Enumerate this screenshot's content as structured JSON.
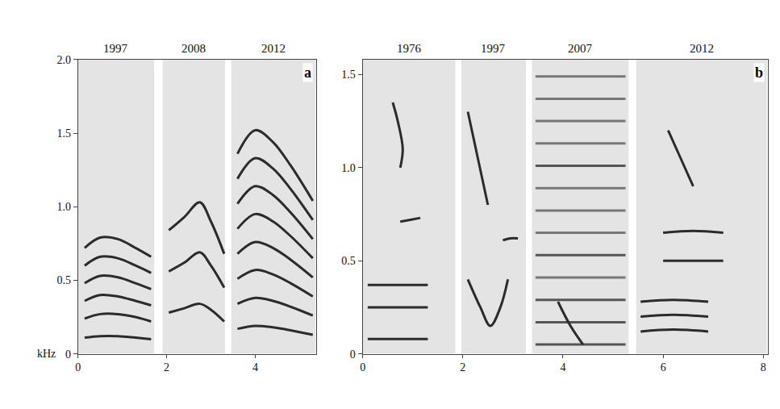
{
  "chart_data": [
    {
      "type": "line",
      "title": "a",
      "ylabel": "kHz",
      "color": "#2b2b2b",
      "xlim": [
        0,
        5.37
      ],
      "xticks": [
        0,
        2,
        4
      ],
      "ylim": [
        0,
        2.0
      ],
      "yticks": [
        0,
        0.5,
        {
          "value": 1,
          "label": "1.0"
        },
        1.5,
        {
          "value": 2,
          "label": "2.0"
        }
      ],
      "segments": [
        {
          "label": "1997",
          "xlim": [
            0,
            1.72
          ]
        },
        {
          "label": "2008",
          "xlim": [
            1.91,
            3.32
          ]
        },
        {
          "label": "2012",
          "xlim": [
            3.46,
            5.37
          ]
        }
      ],
      "series": [
        {
          "x": [
            0.15,
            0.5,
            0.9,
            1.3,
            1.65
          ],
          "values": [
            0.11,
            0.12,
            0.12,
            0.11,
            0.1
          ]
        },
        {
          "x": [
            0.15,
            0.5,
            0.9,
            1.3,
            1.65
          ],
          "values": [
            0.24,
            0.27,
            0.27,
            0.25,
            0.22
          ]
        },
        {
          "x": [
            0.15,
            0.5,
            0.9,
            1.3,
            1.65
          ],
          "values": [
            0.36,
            0.4,
            0.39,
            0.36,
            0.33
          ]
        },
        {
          "x": [
            0.15,
            0.5,
            0.9,
            1.3,
            1.65
          ],
          "values": [
            0.48,
            0.53,
            0.52,
            0.48,
            0.44
          ]
        },
        {
          "x": [
            0.15,
            0.5,
            0.9,
            1.3,
            1.65
          ],
          "values": [
            0.6,
            0.66,
            0.65,
            0.6,
            0.55
          ]
        },
        {
          "x": [
            0.15,
            0.5,
            0.9,
            1.3,
            1.65
          ],
          "values": [
            0.72,
            0.79,
            0.78,
            0.72,
            0.66
          ]
        },
        {
          "x": [
            2.05,
            2.4,
            2.75,
            3.0,
            3.3
          ],
          "values": [
            0.28,
            0.31,
            0.34,
            0.3,
            0.22
          ]
        },
        {
          "x": [
            2.05,
            2.4,
            2.75,
            3.0,
            3.3
          ],
          "values": [
            0.56,
            0.62,
            0.69,
            0.6,
            0.45
          ]
        },
        {
          "x": [
            2.05,
            2.4,
            2.75,
            3.0,
            3.3
          ],
          "values": [
            0.84,
            0.93,
            1.03,
            0.9,
            0.68
          ]
        },
        {
          "x": [
            3.6,
            4.0,
            4.4,
            4.8,
            5.3
          ],
          "values": [
            0.17,
            0.19,
            0.18,
            0.16,
            0.13
          ]
        },
        {
          "x": [
            3.6,
            4.0,
            4.4,
            4.8,
            5.3
          ],
          "values": [
            0.34,
            0.38,
            0.36,
            0.32,
            0.26
          ]
        },
        {
          "x": [
            3.6,
            4.0,
            4.4,
            4.8,
            5.3
          ],
          "values": [
            0.51,
            0.57,
            0.54,
            0.48,
            0.39
          ]
        },
        {
          "x": [
            3.6,
            4.0,
            4.4,
            4.8,
            5.3
          ],
          "values": [
            0.68,
            0.76,
            0.72,
            0.64,
            0.52
          ]
        },
        {
          "x": [
            3.6,
            4.0,
            4.4,
            4.8,
            5.3
          ],
          "values": [
            0.85,
            0.95,
            0.9,
            0.8,
            0.65
          ]
        },
        {
          "x": [
            3.6,
            4.0,
            4.4,
            4.8,
            5.3
          ],
          "values": [
            1.02,
            1.14,
            1.08,
            0.96,
            0.78
          ]
        },
        {
          "x": [
            3.6,
            4.0,
            4.4,
            4.8,
            5.3
          ],
          "values": [
            1.19,
            1.33,
            1.26,
            1.12,
            0.91
          ]
        },
        {
          "x": [
            3.6,
            4.0,
            4.4,
            4.8,
            5.3
          ],
          "values": [
            1.36,
            1.52,
            1.44,
            1.28,
            1.04
          ]
        }
      ]
    },
    {
      "type": "line",
      "title": "b",
      "color": "#2b2b2b",
      "xlim": [
        0,
        8.1
      ],
      "xticks": [
        0,
        2,
        4,
        6,
        8
      ],
      "ylim": [
        0,
        1.58
      ],
      "yticks": [
        0,
        0.5,
        {
          "value": 1,
          "label": "1.0"
        },
        1.5
      ],
      "segments": [
        {
          "label": "1976",
          "xlim": [
            0,
            1.85
          ]
        },
        {
          "label": "1997",
          "xlim": [
            1.97,
            3.26
          ]
        },
        {
          "label": "2007",
          "xlim": [
            3.38,
            5.31
          ]
        },
        {
          "label": "2012",
          "xlim": [
            5.46,
            8.07
          ]
        }
      ],
      "series": [
        {
          "x": [
            0.1,
            0.7,
            1.3
          ],
          "values": [
            0.08,
            0.08,
            0.08
          ]
        },
        {
          "x": [
            0.1,
            0.7,
            1.3
          ],
          "values": [
            0.25,
            0.25,
            0.25
          ]
        },
        {
          "x": [
            0.1,
            0.7,
            1.3
          ],
          "values": [
            0.37,
            0.37,
            0.37
          ]
        },
        {
          "x": [
            0.75,
            0.95,
            1.15
          ],
          "values": [
            0.71,
            0.72,
            0.73
          ]
        },
        {
          "x": [
            0.6,
            0.7,
            0.8,
            0.75
          ],
          "values": [
            1.35,
            1.25,
            1.1,
            1.0
          ]
        },
        {
          "x": [
            2.1,
            2.35,
            2.55,
            2.75,
            2.9
          ],
          "values": [
            0.4,
            0.25,
            0.15,
            0.25,
            0.4
          ]
        },
        {
          "x": [
            2.8,
            2.95,
            3.1
          ],
          "values": [
            0.61,
            0.62,
            0.62
          ]
        },
        {
          "x": [
            2.1,
            2.3,
            2.5
          ],
          "values": [
            1.3,
            1.05,
            0.8
          ]
        },
        {
          "x": [
            3.45,
            5.25
          ],
          "values": [
            0.05,
            0.05
          ],
          "color": "#555555"
        },
        {
          "x": [
            3.45,
            5.25
          ],
          "values": [
            0.17,
            0.17
          ],
          "color": "#555555"
        },
        {
          "x": [
            3.45,
            5.25
          ],
          "values": [
            0.29,
            0.29
          ],
          "color": "#555555"
        },
        {
          "x": [
            3.45,
            5.25
          ],
          "values": [
            0.41,
            0.41
          ],
          "color": "#777777"
        },
        {
          "x": [
            3.45,
            5.25
          ],
          "values": [
            0.53,
            0.53
          ],
          "color": "#555555"
        },
        {
          "x": [
            3.45,
            5.25
          ],
          "values": [
            0.65,
            0.65
          ],
          "color": "#777777"
        },
        {
          "x": [
            3.45,
            5.25
          ],
          "values": [
            0.77,
            0.77
          ],
          "color": "#777777"
        },
        {
          "x": [
            3.45,
            5.25
          ],
          "values": [
            0.89,
            0.89
          ],
          "color": "#777777"
        },
        {
          "x": [
            3.45,
            5.25
          ],
          "values": [
            1.01,
            1.01
          ],
          "color": "#555555"
        },
        {
          "x": [
            3.45,
            5.25
          ],
          "values": [
            1.13,
            1.13
          ],
          "color": "#777777"
        },
        {
          "x": [
            3.45,
            5.25
          ],
          "values": [
            1.25,
            1.25
          ],
          "color": "#777777"
        },
        {
          "x": [
            3.45,
            5.25
          ],
          "values": [
            1.37,
            1.37
          ],
          "color": "#777777"
        },
        {
          "x": [
            3.45,
            5.25
          ],
          "values": [
            1.49,
            1.49
          ],
          "color": "#777777"
        },
        {
          "x": [
            3.9,
            4.15,
            4.4
          ],
          "values": [
            0.28,
            0.15,
            0.05
          ]
        },
        {
          "x": [
            5.55,
            6.2,
            6.9
          ],
          "values": [
            0.12,
            0.13,
            0.12
          ]
        },
        {
          "x": [
            5.55,
            6.2,
            6.9
          ],
          "values": [
            0.2,
            0.21,
            0.2
          ]
        },
        {
          "x": [
            5.55,
            6.2,
            6.9
          ],
          "values": [
            0.28,
            0.29,
            0.28
          ]
        },
        {
          "x": [
            6.0,
            6.6,
            7.2
          ],
          "values": [
            0.5,
            0.5,
            0.5
          ]
        },
        {
          "x": [
            6.0,
            6.6,
            7.2
          ],
          "values": [
            0.65,
            0.66,
            0.65
          ]
        },
        {
          "x": [
            6.1,
            6.35,
            6.6
          ],
          "values": [
            1.2,
            1.05,
            0.9
          ]
        }
      ]
    }
  ]
}
